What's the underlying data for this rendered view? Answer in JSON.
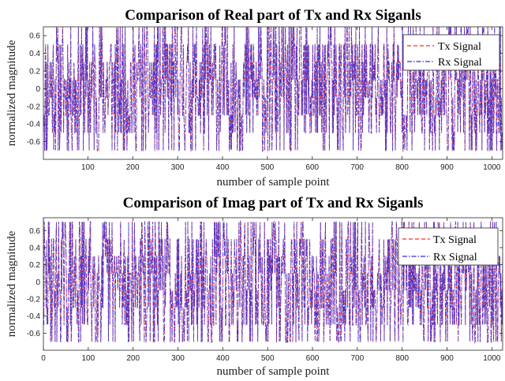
{
  "chart_data": [
    {
      "type": "line",
      "title": "Comparison of Real part of Tx and Rx Siganls",
      "xlabel": "number of sample point",
      "ylabel": "normalized magnitude",
      "xlim": [
        1,
        1024
      ],
      "ylim": [
        -0.8,
        0.7
      ],
      "xticks": [
        100,
        200,
        300,
        400,
        500,
        600,
        700,
        800,
        900,
        1000
      ],
      "yticks": [
        -0.6,
        -0.4,
        -0.2,
        0,
        0.2,
        0.4,
        0.6
      ],
      "grid": false,
      "legend": {
        "placement": "top-right"
      },
      "levels": [
        -0.7,
        -0.5,
        -0.3,
        -0.1,
        0.1,
        0.3,
        0.5,
        0.7
      ],
      "num_samples": 1024,
      "series": [
        {
          "name": "Tx Signal",
          "color": "#ff2a2a",
          "style": "dashed",
          "seed": 11
        },
        {
          "name": "Rx Signal",
          "color": "#2a2adc",
          "style": "dashdot",
          "seed": 11
        }
      ]
    },
    {
      "type": "line",
      "title": "Comparison of Imag part of Tx and Rx Siganls",
      "xlabel": "number of sample point",
      "ylabel": "normalized magnitude",
      "xlim": [
        0,
        1024
      ],
      "ylim": [
        -0.8,
        0.75
      ],
      "xticks": [
        0,
        100,
        200,
        300,
        400,
        500,
        600,
        700,
        800,
        900,
        1000
      ],
      "yticks": [
        -0.6,
        -0.4,
        -0.2,
        0,
        0.2,
        0.4,
        0.6
      ],
      "grid": false,
      "legend": {
        "placement": "top-right"
      },
      "levels": [
        -0.7,
        -0.5,
        -0.3,
        -0.1,
        0.1,
        0.3,
        0.5,
        0.7
      ],
      "num_samples": 1024,
      "series": [
        {
          "name": "Tx Signal",
          "color": "#ff2a2a",
          "style": "dashed",
          "seed": 29
        },
        {
          "name": "Rx Signal",
          "color": "#2a2adc",
          "style": "dashdot",
          "seed": 29
        }
      ]
    }
  ]
}
